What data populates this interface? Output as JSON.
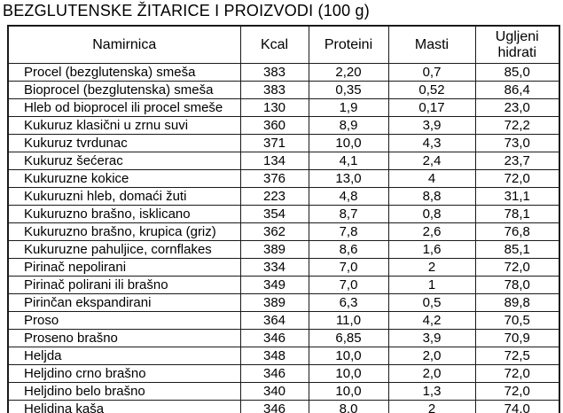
{
  "title": "BEZGLUTENSKE ŽITARICE I PROIZVODI (100 g)",
  "colors": {
    "background": "#ffffff",
    "text": "#000000",
    "border": "#1a1a1a"
  },
  "table": {
    "columns": [
      "Namirnica",
      "Kcal",
      "Proteini",
      "Masti",
      "Ugljeni hidrati"
    ],
    "rows": [
      [
        "Procel (bezglutenska) smeša",
        "383",
        "2,20",
        "0,7",
        "85,0"
      ],
      [
        "Bioprocel (bezglutenska) smeša",
        "383",
        "0,35",
        "0,52",
        "86,4"
      ],
      [
        "Hleb od bioprocel ili procel smeše",
        "130",
        "1,9",
        "0,17",
        "23,0"
      ],
      [
        "Kukuruz klasični u zrnu suvi",
        "360",
        "8,9",
        "3,9",
        "72,2"
      ],
      [
        "Kukuruz tvrdunac",
        "371",
        "10,0",
        "4,3",
        "73,0"
      ],
      [
        "Kukuruz šećerac",
        "134",
        "4,1",
        "2,4",
        "23,7"
      ],
      [
        "Kukuruzne kokice",
        "376",
        "13,0",
        "4",
        "72,0"
      ],
      [
        "Kukuruzni hleb, domaći žuti",
        "223",
        "4,8",
        "8,8",
        "31,1"
      ],
      [
        "Kukuruzno brašno, isklicano",
        "354",
        "8,7",
        "0,8",
        "78,1"
      ],
      [
        "Kukuruzno brašno, krupica (griz)",
        "362",
        "7,8",
        "2,6",
        "76,8"
      ],
      [
        "Kukuruzne pahuljice, cornflakes",
        "389",
        "8,6",
        "1,6",
        "85,1"
      ],
      [
        "Pirinač nepolirani",
        "334",
        "7,0",
        "2",
        "72,0"
      ],
      [
        "Pirinač polirani ili brašno",
        "349",
        "7,0",
        "1",
        "78,0"
      ],
      [
        "Pirinčan ekspandirani",
        "389",
        "6,3",
        "0,5",
        "89,8"
      ],
      [
        "Proso",
        "364",
        "11,0",
        "4,2",
        "70,5"
      ],
      [
        "Proseno brašno",
        "346",
        "6,85",
        "3,9",
        "70,9"
      ],
      [
        "Heljda",
        "348",
        "10,0",
        "2,0",
        "72,5"
      ],
      [
        "Heljdino crno brašno",
        "346",
        "10,0",
        "2,0",
        "72,0"
      ],
      [
        "Heljdino belo brašno",
        "340",
        "10,0",
        "1,3",
        "72,0"
      ],
      [
        "Heljdina kaša",
        "346",
        "8,0",
        "2",
        "74,0"
      ]
    ]
  }
}
